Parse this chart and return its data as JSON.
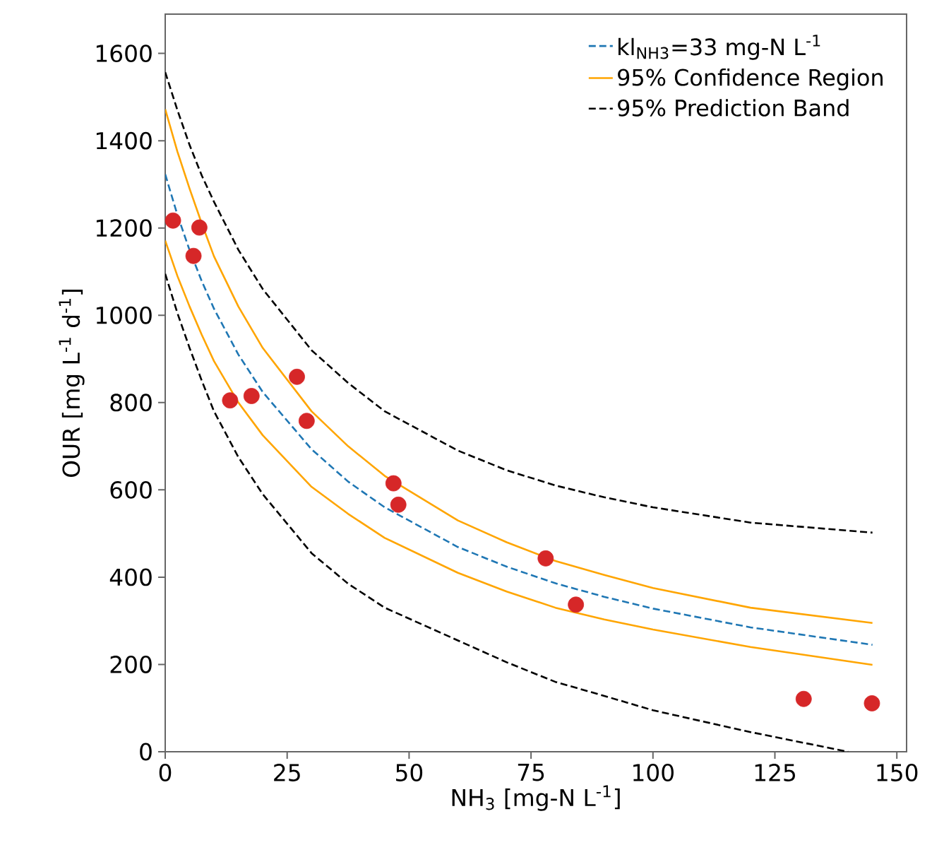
{
  "chart_data": {
    "type": "line",
    "xlabel": "NH$_{3}$ [mg-N L$^{-1}$]",
    "ylabel": "OUR [mg L$^{-1}$ d$^{-1}$]",
    "xlim": [
      0,
      152
    ],
    "ylim": [
      0,
      1690
    ],
    "xticks": [
      0,
      25,
      50,
      75,
      100,
      125,
      150
    ],
    "yticks": [
      0,
      200,
      400,
      600,
      800,
      1000,
      1200,
      1400,
      1600
    ],
    "grid": false,
    "legend": "top right",
    "series": [
      {
        "type": "scatter",
        "color": "#d62728",
        "marker": "circle",
        "x": [
          1.6,
          7.0,
          5.8,
          13.3,
          17.7,
          27.0,
          29.0,
          46.8,
          47.8,
          78.0,
          84.2,
          130.9,
          144.9
        ],
        "values": [
          1217,
          1201,
          1136,
          805,
          815,
          859,
          758,
          615,
          566,
          443,
          337,
          121,
          111
        ]
      },
      {
        "name": "kl$_{NH3}$=33 mg-N L$^{-1}$",
        "color": "#1f77b4",
        "line_style": "dashed",
        "marker": "none",
        "x": [
          0,
          2.5,
          5,
          7.5,
          10,
          15,
          20,
          30,
          37.5,
          45,
          60,
          70,
          80,
          90,
          100,
          120,
          145
        ],
        "values": [
          1323,
          1230,
          1149,
          1078,
          1015,
          910,
          824,
          693,
          619,
          560,
          469,
          424,
          386,
          355,
          328,
          285,
          245
        ]
      },
      {
        "name": "95% Confidence Region",
        "color": "#ffa500",
        "line_style": "solid",
        "marker": "none",
        "x": [
          0,
          2.5,
          5,
          7.5,
          10,
          15,
          20,
          30,
          37.5,
          45,
          60,
          70,
          80,
          90,
          100,
          120,
          145
        ],
        "values": [
          1472,
          1375,
          1290,
          1210,
          1135,
          1020,
          925,
          780,
          700,
          632,
          530,
          480,
          437,
          405,
          375,
          330,
          295
        ]
      },
      {
        "color": "#ffa500",
        "line_style": "solid",
        "marker": "none",
        "x": [
          0,
          2.5,
          5,
          7.5,
          10,
          15,
          20,
          30,
          37.5,
          45,
          60,
          70,
          80,
          90,
          100,
          120,
          145
        ],
        "values": [
          1171,
          1090,
          1020,
          955,
          895,
          800,
          725,
          607,
          545,
          490,
          410,
          367,
          330,
          303,
          280,
          240,
          199
        ]
      },
      {
        "name": "95% Prediction Band",
        "color": "#000000",
        "line_style": "dashed",
        "marker": "none",
        "x": [
          0,
          2.5,
          5,
          7.5,
          10,
          15,
          20,
          30,
          37.5,
          45,
          60,
          70,
          80,
          90,
          100,
          120,
          145
        ],
        "values": [
          1557,
          1470,
          1390,
          1320,
          1260,
          1150,
          1060,
          920,
          845,
          780,
          690,
          645,
          610,
          583,
          560,
          525,
          502
        ]
      },
      {
        "color": "#000000",
        "line_style": "dashed",
        "marker": "none",
        "x": [
          0,
          2.5,
          5,
          7.5,
          10,
          15,
          20,
          30,
          37.5,
          45,
          60,
          70,
          80,
          90,
          100,
          120,
          140
        ],
        "values": [
          1095,
          1005,
          925,
          850,
          780,
          675,
          590,
          455,
          385,
          330,
          255,
          205,
          160,
          128,
          95,
          45,
          0
        ]
      }
    ]
  }
}
